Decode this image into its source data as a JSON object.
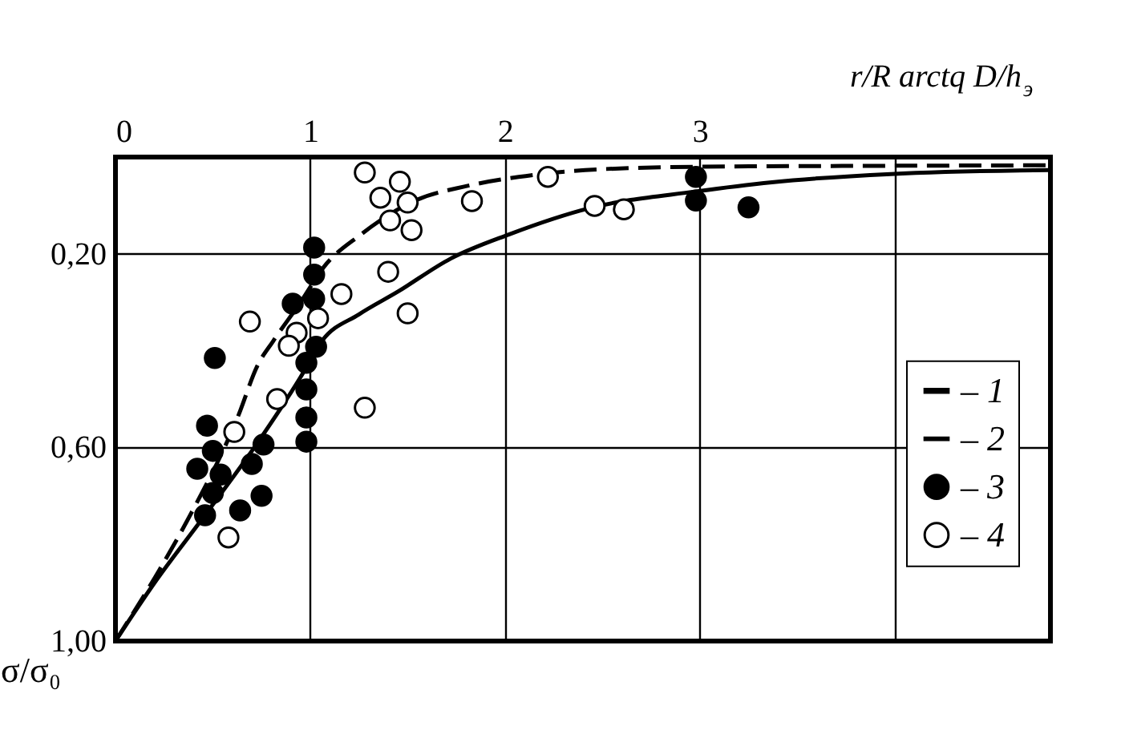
{
  "chart_data": {
    "type": "scatter",
    "xlabel": "r/R arctq D/h$_{э}$",
    "ylabel": "σ/σ₀",
    "xlim": [
      0,
      4.8
    ],
    "xticks": [
      0,
      1,
      2,
      3,
      {
        "value": 4,
        "label": null
      }
    ],
    "ylim": [
      1.0,
      0
    ],
    "yticks": [
      {
        "value": 0.2,
        "label": "0,20"
      },
      {
        "value": 0.6,
        "label": "0,60"
      },
      {
        "value": 1.0,
        "label": "1,00"
      }
    ],
    "grid": true,
    "legend": "right",
    "series": [
      {
        "name": "– 1",
        "type": "line",
        "line_style": "dashed",
        "marker": "none",
        "color": "#000000",
        "x": [
          0,
          0.23,
          0.37,
          0.63,
          0.73,
          0.81,
          0.95,
          1.07,
          1.26,
          1.55,
          1.79,
          2.07,
          2.5,
          3,
          4,
          4.8
        ],
        "values": [
          1.0,
          0.85,
          0.75,
          0.535,
          0.43,
          0.38,
          0.3,
          0.227,
          0.16,
          0.088,
          0.061,
          0.041,
          0.025,
          0.02,
          0.018,
          0.017
        ]
      },
      {
        "name": "– 2",
        "type": "line",
        "line_style": "solid",
        "marker": "none",
        "color": "#000000",
        "x": [
          0,
          0.2,
          0.45,
          0.73,
          0.95,
          1.06,
          1.25,
          1.45,
          1.72,
          2.02,
          2.44,
          2.98,
          3.37,
          3.98,
          4.8
        ],
        "values": [
          1.0,
          0.88,
          0.745,
          0.59,
          0.455,
          0.38,
          0.325,
          0.278,
          0.21,
          0.16,
          0.105,
          0.071,
          0.052,
          0.035,
          0.027
        ]
      },
      {
        "name": "– 3",
        "marker": "circle",
        "color": "#000000",
        "x": [
          1.02,
          1.02,
          1.02,
          0.91,
          1.03,
          0.98,
          0.98,
          0.98,
          0.98,
          0.51,
          0.47,
          0.5,
          0.76,
          0.42,
          0.54,
          0.7,
          0.5,
          0.75,
          0.64,
          0.46,
          2.98,
          2.98,
          3.25
        ],
        "values": [
          0.187,
          0.243,
          0.293,
          0.303,
          0.392,
          0.425,
          0.48,
          0.538,
          0.588,
          0.415,
          0.555,
          0.607,
          0.594,
          0.644,
          0.656,
          0.634,
          0.694,
          0.7,
          0.73,
          0.74,
          0.041,
          0.09,
          0.104
        ]
      },
      {
        "name": "– 4",
        "marker": "circle_open",
        "color": "#000000",
        "x": [
          0.69,
          1.16,
          1.04,
          0.93,
          0.89,
          0.83,
          0.61,
          0.58,
          1.28,
          1.5,
          1.4,
          1.28,
          1.46,
          1.36,
          1.5,
          1.41,
          1.52,
          1.83,
          2.22,
          2.46,
          2.61
        ],
        "values": [
          0.34,
          0.283,
          0.333,
          0.363,
          0.39,
          0.5,
          0.568,
          0.786,
          0.518,
          0.323,
          0.237,
          0.032,
          0.051,
          0.084,
          0.094,
          0.131,
          0.151,
          0.091,
          0.041,
          0.101,
          0.108
        ]
      }
    ]
  }
}
